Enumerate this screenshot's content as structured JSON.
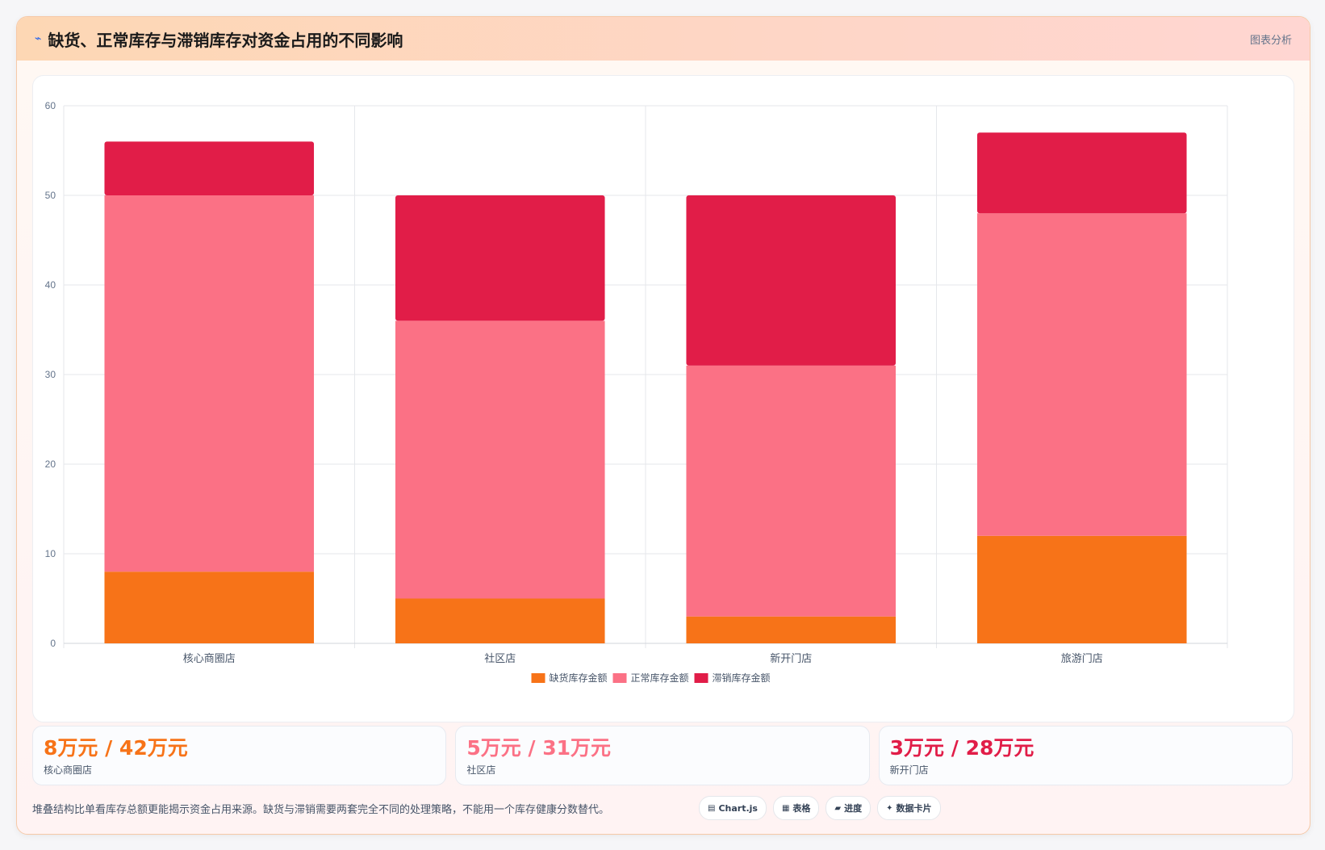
{
  "header": {
    "icon": "chart-trend-icon",
    "title": "缺货、正常库存与滞销库存对资金占用的不同影响",
    "tag": "图表分析"
  },
  "chart_data": {
    "type": "bar",
    "stacked": true,
    "categories": [
      "核心商圈店",
      "社区店",
      "新开门店",
      "旅游门店"
    ],
    "series": [
      {
        "name": "缺货库存金额",
        "color": "#f77318",
        "values": [
          8,
          5,
          3,
          12
        ]
      },
      {
        "name": "正常库存金额",
        "color": "#fb7185",
        "values": [
          42,
          31,
          28,
          36
        ]
      },
      {
        "name": "滞销库存金额",
        "color": "#e11d48",
        "values": [
          6,
          14,
          19,
          9
        ]
      }
    ],
    "ylim": [
      0,
      60
    ],
    "yticks": [
      0,
      10,
      20,
      30,
      40,
      50,
      60
    ],
    "grid": true,
    "legend": "bottom"
  },
  "stats": [
    {
      "value": "8万元 / 42万元",
      "label": "核心商圈店",
      "color": "#f77318"
    },
    {
      "value": "5万元 / 31万元",
      "label": "社区店",
      "color": "#fb7185"
    },
    {
      "value": "3万元 / 28万元",
      "label": "新开门店",
      "color": "#e11d48"
    }
  ],
  "footer": {
    "note": "堆叠结构比单看库存总额更能揭示资金占用来源。缺货与滞销需要两套完全不同的处理策略，不能用一个库存健康分数替代。",
    "chips": [
      {
        "icon": "chart-icon",
        "label": "Chart.js"
      },
      {
        "icon": "table-icon",
        "label": "表格"
      },
      {
        "icon": "progress-icon",
        "label": "进度"
      },
      {
        "icon": "sparkle-icon",
        "label": "数据卡片"
      }
    ]
  }
}
